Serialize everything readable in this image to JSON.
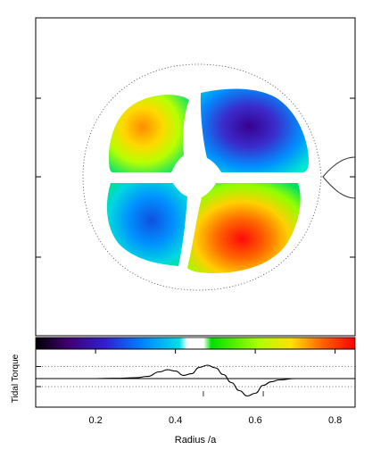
{
  "chart_data": [
    {
      "type": "heatmap",
      "title": "",
      "xlabel": "",
      "ylabel": "",
      "grid": false,
      "frame_ticks": {
        "left": 3,
        "right": 3
      },
      "quadrants": [
        {
          "position": "upper-left",
          "sign": "positive",
          "intensity": "moderate",
          "colors": [
            "#ffa000",
            "#f8ff00",
            "#00e060"
          ]
        },
        {
          "position": "upper-right",
          "sign": "negative",
          "intensity": "strong",
          "colors": [
            "#380090",
            "#3a2ccc",
            "#00a0ff",
            "#00e8d0"
          ]
        },
        {
          "position": "lower-left",
          "sign": "negative",
          "intensity": "moderate",
          "colors": [
            "#1060e0",
            "#00b0ff",
            "#00e0c0"
          ]
        },
        {
          "position": "lower-right",
          "sign": "positive",
          "intensity": "strong",
          "colors": [
            "#ff1010",
            "#ff7a00",
            "#ffd000",
            "#00e060"
          ]
        }
      ],
      "annotations": [
        "dotted Roche-lobe outline around disc",
        "companion lobe at right edge"
      ]
    },
    {
      "type": "colorbar",
      "colors": [
        "#000000",
        "#400070",
        "#3020d0",
        "#0080ff",
        "#00e0e8",
        "#ffffff",
        "#00e000",
        "#b0ff00",
        "#ffe000",
        "#ff6000",
        "#ff0000"
      ],
      "center": "white = zero"
    },
    {
      "type": "line",
      "xlabel": "Radius /a",
      "ylabel": "Tidal Torque",
      "xlim": [
        0.05,
        0.85
      ],
      "ylim": [
        -1,
        1
      ],
      "xticks": [
        0.2,
        0.4,
        0.6,
        0.8
      ],
      "xtick_labels": [
        "0.2",
        "0.4",
        "0.6",
        "0.8"
      ],
      "zero_line": true,
      "dotted_reference_y": [
        0.45,
        -0.3
      ],
      "vertical_markers": [
        0.47,
        0.62
      ],
      "series": [
        {
          "x": [
            0.05,
            0.1,
            0.15,
            0.2,
            0.25,
            0.3,
            0.33,
            0.36,
            0.38,
            0.4,
            0.42,
            0.44,
            0.46,
            0.48,
            0.5,
            0.52,
            0.54,
            0.56,
            0.58,
            0.6,
            0.62,
            0.64,
            0.66,
            0.7,
            0.75,
            0.8,
            0.85
          ],
          "y": [
            0.0,
            0.0,
            0.0,
            0.0,
            0.01,
            0.03,
            0.08,
            0.25,
            0.33,
            0.28,
            0.12,
            0.18,
            0.42,
            0.5,
            0.4,
            0.15,
            -0.15,
            -0.45,
            -0.65,
            -0.55,
            -0.25,
            -0.12,
            -0.05,
            0.0,
            0.0,
            0.0,
            0.0
          ]
        }
      ]
    }
  ]
}
